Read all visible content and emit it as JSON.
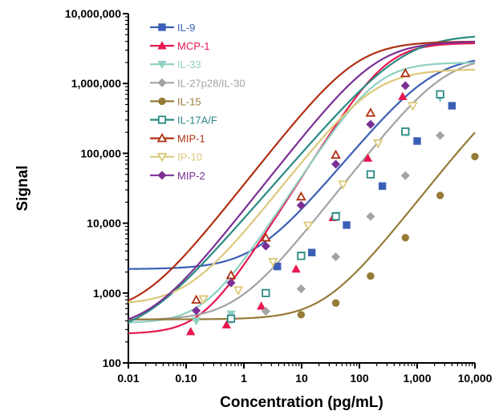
{
  "chart_data": {
    "type": "line",
    "xscale": "log",
    "yscale": "log",
    "xlim": [
      0.01,
      10000
    ],
    "ylim": [
      100,
      10000000
    ],
    "xlabel": "Concentration (pg/mL)",
    "ylabel": "Signal",
    "title": "",
    "grid": false,
    "legend_position": "top-left",
    "x_ticks": [
      {
        "value": 0.01,
        "label": "0.01"
      },
      {
        "value": 0.1,
        "label": "0.10"
      },
      {
        "value": 1,
        "label": "1"
      },
      {
        "value": 10,
        "label": "10"
      },
      {
        "value": 100,
        "label": "100"
      },
      {
        "value": 1000,
        "label": "1,000"
      },
      {
        "value": 10000,
        "label": "10,000"
      }
    ],
    "y_ticks": [
      {
        "value": 100,
        "label": "100"
      },
      {
        "value": 1000,
        "label": "1,000"
      },
      {
        "value": 10000,
        "label": "10,000"
      },
      {
        "value": 100000,
        "label": "100,000"
      },
      {
        "value": 1000000,
        "label": "1,000,000"
      },
      {
        "value": 10000000,
        "label": "10,000,000"
      }
    ],
    "series": [
      {
        "name": "IL-9",
        "color": "#3b5fb6",
        "marker": "square-filled",
        "bottom": 2200,
        "top": 2500000,
        "ec50": 1800,
        "hill": 1.0,
        "points": [
          [
            3.8,
            2400
          ],
          [
            15,
            3800
          ],
          [
            60,
            9400
          ],
          [
            250,
            34000
          ],
          [
            1000,
            150000
          ],
          [
            4000,
            480000
          ]
        ]
      },
      {
        "name": "MCP-1",
        "color": "#e8174f",
        "marker": "triangle-up-filled",
        "bottom": 260,
        "top": 3800000,
        "ec50": 300,
        "hill": 1.3,
        "points": [
          [
            0.12,
            280
          ],
          [
            0.5,
            350
          ],
          [
            2,
            650
          ],
          [
            8,
            2200
          ],
          [
            35,
            12000
          ],
          [
            140,
            85000
          ],
          [
            560,
            650000
          ]
        ]
      },
      {
        "name": "IL-33",
        "color": "#8fd0c2",
        "marker": "triangle-down-filled",
        "bottom": 370,
        "top": 2000000,
        "ec50": 200,
        "hill": 1.25,
        "points": [
          [
            0.15,
            400
          ],
          [
            0.6,
            500
          ],
          [
            2.4,
            1000
          ],
          [
            10,
            3500
          ],
          [
            40,
            13000
          ],
          [
            160,
            50000
          ],
          [
            640,
            200000
          ],
          [
            2500,
            620000
          ]
        ]
      },
      {
        "name": "IL-27p28/IL-30",
        "color": "#a3a3a3",
        "marker": "diamond-filled",
        "bottom": 410,
        "top": 2500000,
        "ec50": 3000,
        "hill": 1.05,
        "points": [
          [
            0.6,
            420
          ],
          [
            2.4,
            550
          ],
          [
            9.8,
            1150
          ],
          [
            39,
            3300
          ],
          [
            156,
            12500
          ],
          [
            625,
            48000
          ],
          [
            2500,
            180000
          ]
        ]
      },
      {
        "name": "IL-15",
        "color": "#967b38",
        "marker": "circle-filled",
        "bottom": 420,
        "top": 1500000,
        "ec50": 60000,
        "hill": 1.05,
        "points": [
          [
            9.8,
            490
          ],
          [
            39,
            720
          ],
          [
            156,
            1750
          ],
          [
            625,
            6200
          ],
          [
            2500,
            25000
          ],
          [
            10000,
            90000
          ]
        ]
      },
      {
        "name": "IL-17A/F",
        "color": "#2b8a83",
        "marker": "square-open",
        "bottom": 240,
        "top": 5000000,
        "ec50": 600,
        "hill": 0.95,
        "points": [
          [
            0.6,
            430
          ],
          [
            2.4,
            1000
          ],
          [
            9.8,
            3400
          ],
          [
            39,
            12500
          ],
          [
            156,
            50000
          ],
          [
            625,
            205000
          ],
          [
            2500,
            700000
          ]
        ]
      },
      {
        "name": "MIP-1",
        "color": "#b03013",
        "marker": "triangle-up-open",
        "bottom": 500,
        "top": 4000000,
        "ec50": 90,
        "hill": 1.05,
        "points": [
          [
            0.15,
            800
          ],
          [
            0.6,
            1800
          ],
          [
            2.4,
            6200
          ],
          [
            9.8,
            24000
          ],
          [
            39,
            95000
          ],
          [
            156,
            380000
          ],
          [
            625,
            1400000
          ]
        ]
      },
      {
        "name": "IP-10",
        "color": "#dcc97a",
        "marker": "triangle-down-open",
        "bottom": 680,
        "top": 1600000,
        "ec50": 180,
        "hill": 1.05,
        "points": [
          [
            0.2,
            820
          ],
          [
            0.8,
            1100
          ],
          [
            3.2,
            2800
          ],
          [
            13,
            9300
          ],
          [
            52,
            36000
          ],
          [
            210,
            140000
          ],
          [
            840,
            480000
          ]
        ]
      },
      {
        "name": "MIP-2",
        "color": "#7b3094",
        "marker": "diamond-filled",
        "bottom": 300,
        "top": 4000000,
        "ec50": 200,
        "hill": 1.05,
        "points": [
          [
            0.15,
            560
          ],
          [
            0.6,
            1400
          ],
          [
            2.4,
            4700
          ],
          [
            9.8,
            18000
          ],
          [
            39,
            70000
          ],
          [
            156,
            260000
          ],
          [
            625,
            930000
          ]
        ]
      }
    ]
  }
}
